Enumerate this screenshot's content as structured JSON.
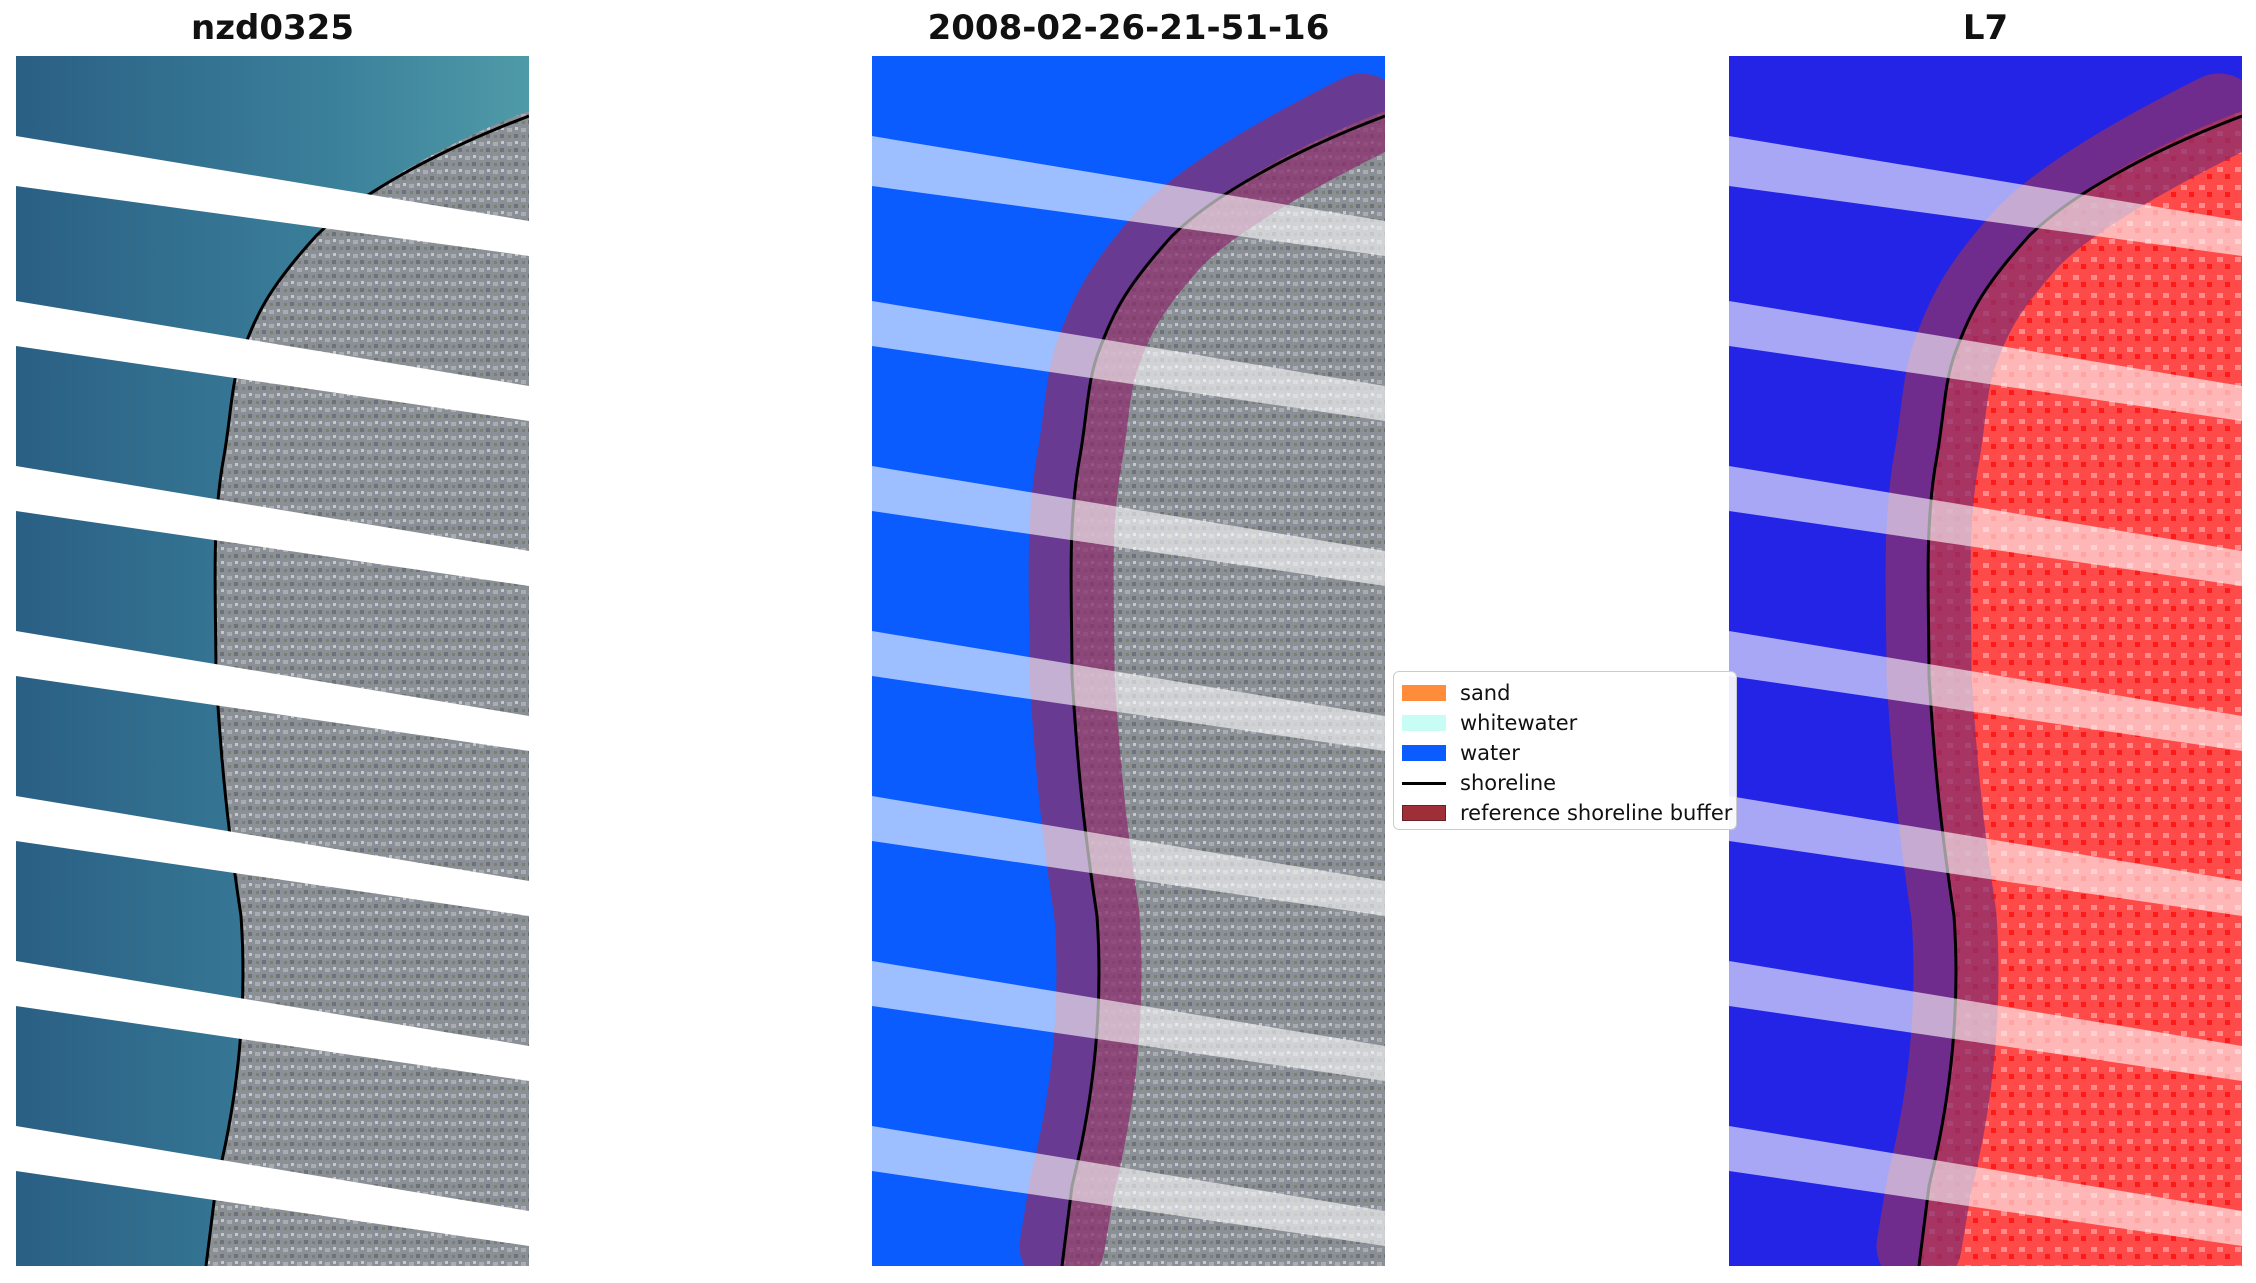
{
  "panels": [
    {
      "title": "nzd0325",
      "kind": "rgb"
    },
    {
      "title": "2008-02-26-21-51-16",
      "kind": "classified"
    },
    {
      "title": "L7",
      "kind": "index"
    }
  ],
  "legend": {
    "items": [
      {
        "label": "sand",
        "type": "patch",
        "color": "#ff8c3a"
      },
      {
        "label": "whitewater",
        "type": "patch",
        "color": "#c8fdf6"
      },
      {
        "label": "water",
        "type": "patch",
        "color": "#0a5cff"
      },
      {
        "label": "shoreline",
        "type": "line",
        "color": "#000000"
      },
      {
        "label": "reference shoreline buffer",
        "type": "patch",
        "color": "#9e2f38"
      }
    ]
  },
  "colors": {
    "sea_rgb": "#2f6f8f",
    "land_rgb": "#8a8e94",
    "water_class": "#0a5cff",
    "water_index": "#2424e6",
    "land_index": "#ff4d4d",
    "buffer": "#a0306a"
  }
}
